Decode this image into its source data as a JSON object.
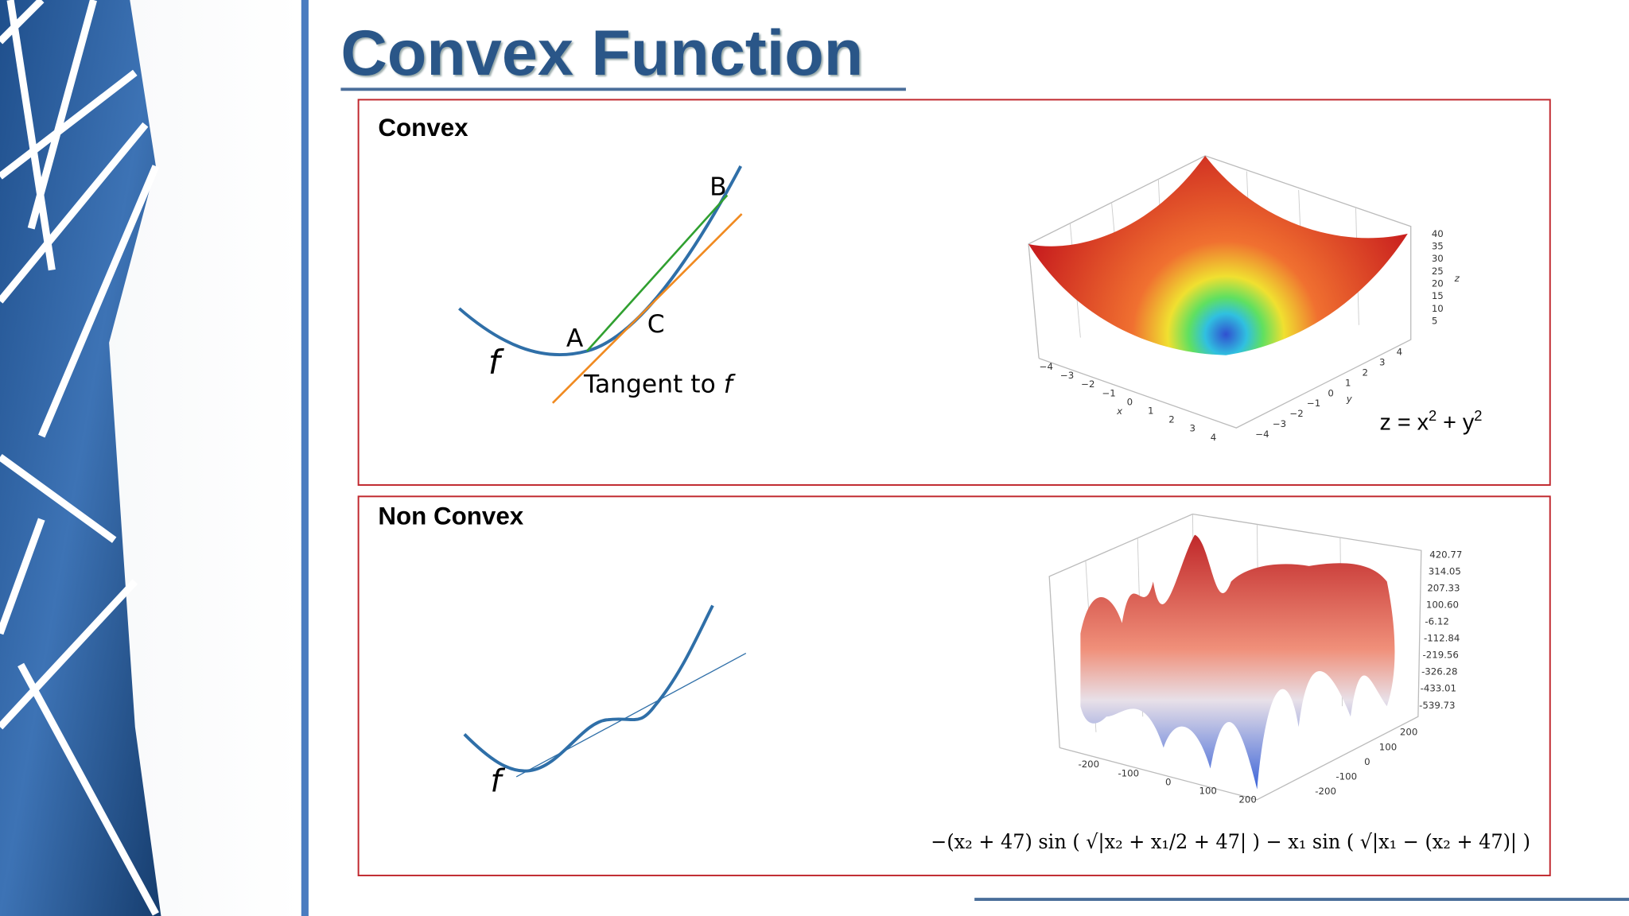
{
  "header": {
    "title": "Convex Function"
  },
  "panels": [
    {
      "title": "Convex",
      "diagram": {
        "point_a": "A",
        "point_b": "B",
        "point_c": "C",
        "function": "f",
        "tangent": "Tangent to",
        "tangent_var": "f"
      },
      "plot": {
        "x_label": "x",
        "y_label": "y",
        "z_label": "z",
        "x_ticks": [
          "−4",
          "−3",
          "−2",
          "−1",
          "0",
          "1",
          "2",
          "3",
          "4"
        ],
        "y_ticks": [
          "−4",
          "−3",
          "−2",
          "−1",
          "0",
          "1",
          "2",
          "3",
          "4"
        ],
        "z_ticks": [
          "5",
          "10",
          "15",
          "20",
          "25",
          "30",
          "35",
          "40"
        ],
        "equation": {
          "base_1": "z = x",
          "exp_1": "2",
          "base_2": " + y",
          "exp_2": "2"
        }
      }
    },
    {
      "title": "Non Convex",
      "diagram": {
        "function": "f"
      },
      "plot": {
        "x_ticks": [
          "-200",
          "-100",
          "0",
          "100",
          "200"
        ],
        "y_ticks": [
          "-200",
          "-100",
          "0",
          "100",
          "200"
        ],
        "z_ticks": [
          "420.77",
          "314.05",
          "207.33",
          "100.60",
          "-6.12",
          "-112.84",
          "-219.56",
          "-326.28",
          "-433.01",
          "-539.73"
        ],
        "equation": "−(x₂ + 47) sin ( √|x₂ + x₁/2 + 47| ) − x₁ sin ( √|x₁ − (x₂ + 47)| )"
      }
    }
  ]
}
